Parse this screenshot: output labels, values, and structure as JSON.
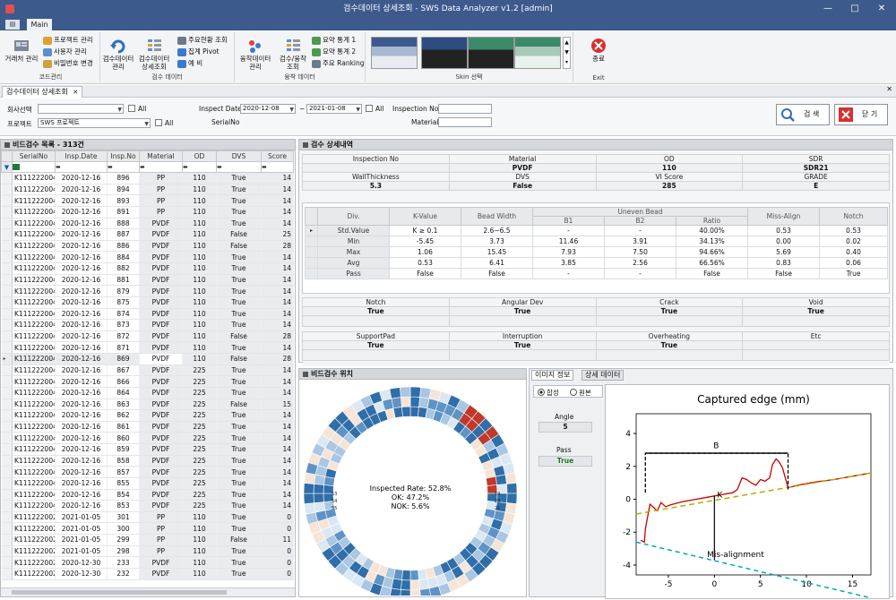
{
  "window": {
    "title": "검수데이터 상세조회 - SWS Data Analyzer v1.2 [admin]",
    "controls": [
      "—",
      "□",
      "✕"
    ]
  },
  "ribbon": {
    "app_button": "▤",
    "tab": "Main",
    "code_group": {
      "label": "코드관리",
      "big": "거래처 관리",
      "small": [
        "프로젝트 관리",
        "사용자 관리",
        "비밀번호 변경"
      ]
    },
    "inspect_group": {
      "label": "검수 데이터",
      "big": [
        "검수데이터 관리",
        "검수데이터 상세조회"
      ],
      "small": [
        "주요현황 조회",
        "집계 Pivot",
        "예 비"
      ]
    },
    "weld_group": {
      "label": "융착 데이터",
      "big": [
        "융착데이터 관리",
        "검수/융착 조회"
      ],
      "small": [
        "요약 통계 1",
        "요약 통계 2",
        "주요 Ranking"
      ]
    },
    "skin_group": {
      "label": "Skin 선택"
    },
    "exit_group": {
      "label": "Exit",
      "button": "종료"
    }
  },
  "doc_tab": {
    "label": "검수데이터 상세조회",
    "close": "✕"
  },
  "filter": {
    "company_label": "회사선택",
    "company_value": "",
    "all": "All",
    "project_label": "프로젝트",
    "project_value": "SWS 프로젝트",
    "inspect_date_label": "Inspect Date",
    "date_from": "2020-12-08",
    "date_sep": "~",
    "date_to": "2021-01-08",
    "serial_label": "SerialNo",
    "inspection_no_label": "Inspection No",
    "material_label": "Material",
    "search_button": "검 색",
    "close_button": "닫 기"
  },
  "list": {
    "title": "비드검수 목록 - 313건",
    "columns": [
      "SerialNo",
      "Insp.Date",
      "Insp.No",
      "Material",
      "OD",
      "DVS",
      "Score"
    ],
    "rows": [
      [
        "K111222004",
        "2020-12-16",
        "896",
        "PP",
        "110",
        "True",
        "14"
      ],
      [
        "K111222004",
        "2020-12-16",
        "894",
        "PP",
        "110",
        "True",
        "14"
      ],
      [
        "K111222004",
        "2020-12-16",
        "893",
        "PP",
        "110",
        "True",
        "14"
      ],
      [
        "K111222004",
        "2020-12-16",
        "891",
        "PP",
        "110",
        "True",
        "14"
      ],
      [
        "K111222004",
        "2020-12-16",
        "888",
        "PVDF",
        "110",
        "True",
        "14"
      ],
      [
        "K111222004",
        "2020-12-16",
        "887",
        "PVDF",
        "110",
        "False",
        "25"
      ],
      [
        "K111222004",
        "2020-12-16",
        "886",
        "PVDF",
        "110",
        "False",
        "28"
      ],
      [
        "K111222004",
        "2020-12-16",
        "884",
        "PVDF",
        "110",
        "True",
        "14"
      ],
      [
        "K111222004",
        "2020-12-16",
        "882",
        "PVDF",
        "110",
        "True",
        "14"
      ],
      [
        "K111222004",
        "2020-12-16",
        "881",
        "PVDF",
        "110",
        "True",
        "14"
      ],
      [
        "K111222004",
        "2020-12-16",
        "879",
        "PVDF",
        "110",
        "True",
        "14"
      ],
      [
        "K111222004",
        "2020-12-16",
        "875",
        "PVDF",
        "110",
        "True",
        "14"
      ],
      [
        "K111222004",
        "2020-12-16",
        "874",
        "PVDF",
        "110",
        "True",
        "14"
      ],
      [
        "K111222004",
        "2020-12-16",
        "873",
        "PVDF",
        "110",
        "True",
        "14"
      ],
      [
        "K111222004",
        "2020-12-16",
        "872",
        "PVDF",
        "110",
        "False",
        "28"
      ],
      [
        "K111222004",
        "2020-12-16",
        "871",
        "PVDF",
        "110",
        "True",
        "14"
      ],
      [
        "K111222004",
        "2020-12-16",
        "869",
        "PVDF",
        "110",
        "False",
        "28"
      ],
      [
        "K111222004",
        "2020-12-16",
        "867",
        "PVDF",
        "225",
        "True",
        "14"
      ],
      [
        "K111222004",
        "2020-12-16",
        "866",
        "PVDF",
        "225",
        "True",
        "14"
      ],
      [
        "K111222004",
        "2020-12-16",
        "864",
        "PVDF",
        "225",
        "True",
        "14"
      ],
      [
        "K111222004",
        "2020-12-16",
        "863",
        "PVDF",
        "225",
        "False",
        "15"
      ],
      [
        "K111222004",
        "2020-12-16",
        "862",
        "PVDF",
        "225",
        "True",
        "14"
      ],
      [
        "K111222004",
        "2020-12-16",
        "861",
        "PVDF",
        "225",
        "True",
        "14"
      ],
      [
        "K111222004",
        "2020-12-16",
        "860",
        "PVDF",
        "225",
        "True",
        "14"
      ],
      [
        "K111222004",
        "2020-12-16",
        "859",
        "PVDF",
        "225",
        "True",
        "14"
      ],
      [
        "K111222004",
        "2020-12-16",
        "858",
        "PVDF",
        "225",
        "True",
        "14"
      ],
      [
        "K111222004",
        "2020-12-16",
        "857",
        "PVDF",
        "225",
        "True",
        "14"
      ],
      [
        "K111222004",
        "2020-12-16",
        "855",
        "PVDF",
        "225",
        "True",
        "14"
      ],
      [
        "K111222004",
        "2020-12-16",
        "854",
        "PVDF",
        "225",
        "True",
        "14"
      ],
      [
        "K111222004",
        "2020-12-16",
        "853",
        "PVDF",
        "225",
        "True",
        "14"
      ],
      [
        "K111222002",
        "2021-01-05",
        "301",
        "PP",
        "110",
        "True",
        "0"
      ],
      [
        "K111222002",
        "2021-01-05",
        "300",
        "PP",
        "110",
        "True",
        "0"
      ],
      [
        "K111222002",
        "2021-01-05",
        "299",
        "PP",
        "110",
        "False",
        "11"
      ],
      [
        "K111222002",
        "2021-01-05",
        "298",
        "PP",
        "110",
        "True",
        "0"
      ],
      [
        "K111222002",
        "2020-12-30",
        "233",
        "PVDF",
        "110",
        "True",
        "0"
      ],
      [
        "K111222002",
        "2020-12-30",
        "232",
        "PVDF",
        "110",
        "True",
        "0"
      ]
    ]
  },
  "detail": {
    "title": "검수 상세내역",
    "info_rows": [
      [
        [
          "Inspection No",
          ""
        ],
        [
          "Material",
          "PVDF"
        ],
        [
          "OD",
          "110"
        ],
        [
          "SDR",
          "SDR21"
        ]
      ],
      [
        [
          "WallThickness",
          "5.3"
        ],
        [
          "DVS",
          "False"
        ],
        [
          "VI Score",
          "285"
        ],
        [
          "GRADE",
          "E"
        ]
      ]
    ],
    "stat_headers": [
      "Div.",
      "K-Value",
      "Bead Width",
      "Uneven Bead",
      "B1",
      "B2",
      "Ratio",
      "Miss-Align",
      "Notch"
    ],
    "stat_rows": [
      [
        "Std.Value",
        "K ≥ 0.1",
        "2.6~6.5",
        "-",
        "-",
        "40.00%",
        "0.53",
        "0.53"
      ],
      [
        "Min",
        "-5.45",
        "3.73",
        "11.46",
        "3.91",
        "34.13%",
        "0.00",
        "0.02"
      ],
      [
        "Max",
        "1.06",
        "15.45",
        "7.93",
        "7.50",
        "94.66%",
        "5.69",
        "0.40"
      ],
      [
        "Avg",
        "0.53",
        "6.41",
        "3.85",
        "2.56",
        "66.56%",
        "0.83",
        "0.06"
      ],
      [
        "Pass",
        "False",
        "False",
        "-",
        "-",
        "False",
        "False",
        "True"
      ]
    ],
    "flags1": [
      [
        "Notch",
        "True"
      ],
      [
        "Angular Dev",
        "True"
      ],
      [
        "Crack",
        "True"
      ],
      [
        "Void",
        "True"
      ]
    ],
    "flags2": [
      [
        "SupportPad",
        "True"
      ],
      [
        "Interruption",
        "True"
      ],
      [
        "Overheating",
        "True"
      ],
      [
        "Etc",
        ""
      ]
    ]
  },
  "position": {
    "title": "비드검수 위치",
    "rate": "Inspected Rate: 52.8%",
    "ok": "OK: 47.2%",
    "nok": "NOK: 5.6%",
    "labels": [
      "19",
      "20",
      "21",
      "53",
      "54",
      "55"
    ]
  },
  "image": {
    "tabs": [
      "이미지 정보",
      "상세 데이터"
    ],
    "radio": [
      "합성",
      "원본"
    ],
    "angle_label": "Angle",
    "angle": "5",
    "pass_label": "Pass",
    "pass": "True"
  },
  "chart_data": {
    "type": "line",
    "title": "Captured edge (mm)",
    "xticks": [
      "-5",
      "0",
      "5",
      "10",
      "15"
    ],
    "yticks": [
      "4",
      "2",
      "0",
      "-2",
      "-4"
    ],
    "xlim": [
      -8.5,
      17
    ],
    "ylim": [
      -4.6,
      5.2
    ],
    "annotations": [
      "B",
      "K",
      "Mis-alignment"
    ],
    "series": [
      {
        "x": [
          -8,
          -7.6,
          -7.5,
          -7,
          -6.2,
          -5.8,
          -5.3,
          -4.8,
          -3.5,
          -2,
          -1,
          0,
          1,
          2,
          2.5,
          3,
          3.5,
          4,
          4.5,
          5,
          5.5,
          6,
          6.3,
          6.7,
          7,
          7.4,
          7.8,
          8,
          9,
          11,
          13,
          15,
          17
        ],
        "y": [
          -2.5,
          -2.6,
          -1.8,
          -0.3,
          -0.7,
          -0.2,
          -0.45,
          -0.35,
          -0.15,
          0,
          0.1,
          0.2,
          0.3,
          0.4,
          0.6,
          1.3,
          1.2,
          1.0,
          0.85,
          1.2,
          1.1,
          1.3,
          2.1,
          2.45,
          2.3,
          1.9,
          1.1,
          0.7,
          0.85,
          1.05,
          1.2,
          1.4,
          1.6
        ],
        "color": "#cc0000"
      },
      {
        "x": [
          -8.5,
          17
        ],
        "y": [
          -0.9,
          1.6
        ],
        "color": "#b0b000"
      },
      {
        "x": [
          -8.5,
          17
        ],
        "y": [
          -2.6,
          -6.0
        ],
        "color": "#00aab0"
      }
    ]
  }
}
